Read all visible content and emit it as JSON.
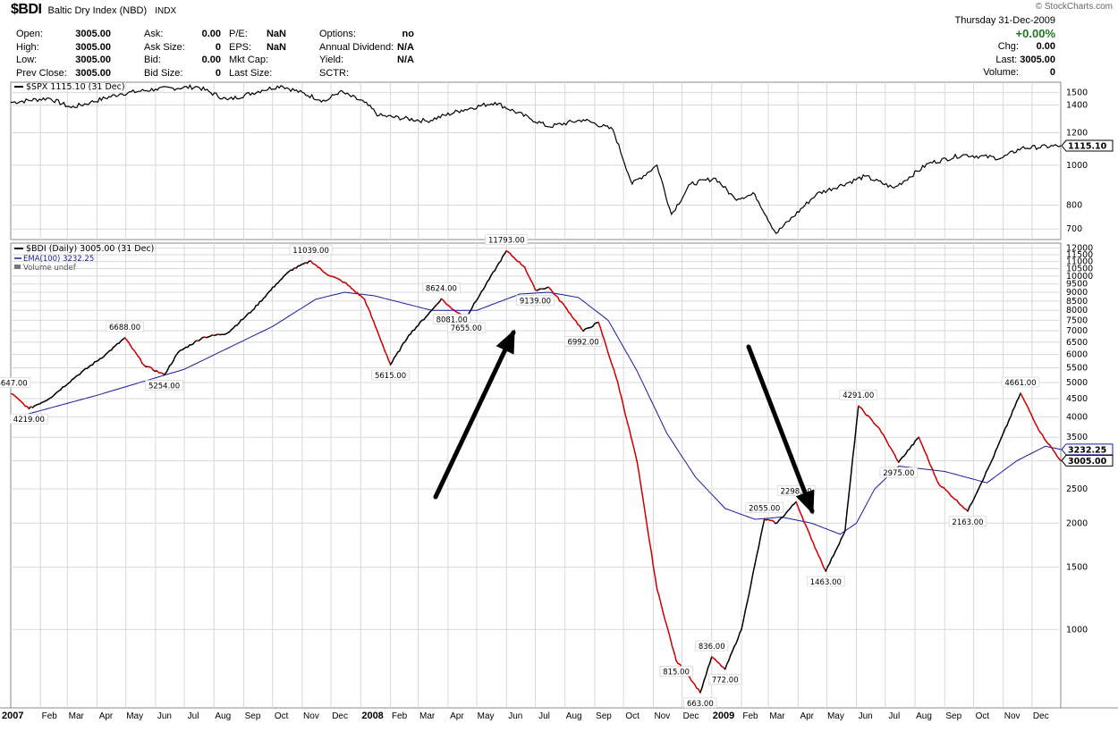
{
  "header": {
    "symbol": "$BDI",
    "name": "Baltic Dry Index (NBD)",
    "exchange": "INDX",
    "brand": "© StockCharts.com",
    "date": "Thursday  31-Dec-2009",
    "change_pct": "+0.00%",
    "col1": [
      [
        "Open:",
        "3005.00"
      ],
      [
        "High:",
        "3005.00"
      ],
      [
        "Low:",
        "3005.00"
      ],
      [
        "Prev Close:",
        "3005.00"
      ]
    ],
    "col2": [
      [
        "Ask:",
        "0.00"
      ],
      [
        "Ask Size:",
        "0"
      ],
      [
        "Bid:",
        "0.00"
      ],
      [
        "Bid Size:",
        "0"
      ]
    ],
    "col3": [
      [
        "P/E:",
        "NaN"
      ],
      [
        "EPS:",
        "NaN"
      ],
      [
        "Mkt Cap:",
        ""
      ],
      [
        "Last Size:",
        ""
      ]
    ],
    "col4": [
      [
        "Options:",
        "no"
      ],
      [
        "Annual Dividend:",
        "N/A"
      ],
      [
        "Yield:",
        "N/A"
      ],
      [
        "SCTR:",
        ""
      ]
    ],
    "right": [
      [
        "Chg:",
        "0.00"
      ],
      [
        "Last:",
        "3005.00"
      ],
      [
        "Volume:",
        "0"
      ]
    ]
  },
  "colors": {
    "up": "#000000",
    "down": "#cc0000",
    "ema": "#1a1aa0",
    "spx": "#000000",
    "grid": "#d8d8d8"
  },
  "chart_data": [
    {
      "type": "line",
      "legend": "$SPX 1115.10 (31 Dec)",
      "last_label": "1115.10",
      "y_ticks": [
        700,
        800,
        1000,
        1200,
        1400,
        1500
      ],
      "ylim": [
        660,
        1590
      ],
      "log_scale": true,
      "x_range": [
        "2007-01-01",
        "2009-12-31"
      ],
      "points": [
        [
          "2007-01-01",
          1420
        ],
        [
          "2007-02-10",
          1455
        ],
        [
          "2007-03-05",
          1380
        ],
        [
          "2007-03-25",
          1420
        ],
        [
          "2007-04-25",
          1490
        ],
        [
          "2007-06-01",
          1530
        ],
        [
          "2007-07-15",
          1550
        ],
        [
          "2007-08-15",
          1440
        ],
        [
          "2007-09-20",
          1520
        ],
        [
          "2007-10-10",
          1560
        ],
        [
          "2007-11-25",
          1430
        ],
        [
          "2007-12-10",
          1510
        ],
        [
          "2008-01-05",
          1420
        ],
        [
          "2008-01-20",
          1320
        ],
        [
          "2008-03-10",
          1280
        ],
        [
          "2008-04-15",
          1360
        ],
        [
          "2008-05-20",
          1420
        ],
        [
          "2008-06-25",
          1300
        ],
        [
          "2008-07-15",
          1240
        ],
        [
          "2008-08-20",
          1290
        ],
        [
          "2008-09-20",
          1220
        ],
        [
          "2008-10-10",
          900
        ],
        [
          "2008-11-05",
          1000
        ],
        [
          "2008-11-20",
          760
        ],
        [
          "2008-12-10",
          900
        ],
        [
          "2009-01-05",
          930
        ],
        [
          "2009-01-25",
          830
        ],
        [
          "2009-02-15",
          850
        ],
        [
          "2009-03-09",
          683
        ],
        [
          "2009-04-20",
          850
        ],
        [
          "2009-06-10",
          940
        ],
        [
          "2009-07-10",
          880
        ],
        [
          "2009-08-15",
          1010
        ],
        [
          "2009-09-20",
          1060
        ],
        [
          "2009-10-30",
          1040
        ],
        [
          "2009-11-20",
          1100
        ],
        [
          "2009-12-31",
          1115.1
        ]
      ]
    },
    {
      "type": "line",
      "legend": [
        "$BDI (Daily) 3005.00 (31 Dec)",
        "EMA(100) 3232.25",
        "Volume undef"
      ],
      "last_labels": [
        "3232.25",
        "3005.00"
      ],
      "y_ticks": [
        1000,
        1500,
        2000,
        2500,
        3000,
        3500,
        4000,
        4500,
        5000,
        5500,
        6000,
        6500,
        7000,
        7500,
        8000,
        8500,
        9000,
        9500,
        10000,
        10500,
        11000,
        11500,
        12000
      ],
      "ylim": [
        600,
        12400
      ],
      "log_scale": true,
      "x_labels": [
        "2007",
        "Feb",
        "Mar",
        "Apr",
        "May",
        "Jun",
        "Jul",
        "Aug",
        "Sep",
        "Oct",
        "Nov",
        "Dec",
        "2008",
        "Feb",
        "Mar",
        "Apr",
        "May",
        "Jun",
        "Jul",
        "Aug",
        "Sep",
        "Oct",
        "Nov",
        "Dec",
        "2009",
        "Feb",
        "Mar",
        "Apr",
        "May",
        "Jun",
        "Jul",
        "Aug",
        "Sep",
        "Oct",
        "Nov",
        "Dec"
      ],
      "series": [
        {
          "name": "$BDI (Daily)",
          "points": [
            [
              "2007-01-02",
              4647
            ],
            [
              "2007-01-20",
              4219
            ],
            [
              "2007-02-10",
              4500
            ],
            [
              "2007-03-10",
              5200
            ],
            [
              "2007-04-10",
              6000
            ],
            [
              "2007-04-30",
              6688
            ],
            [
              "2007-05-20",
              5600
            ],
            [
              "2007-06-10",
              5254
            ],
            [
              "2007-06-25",
              6100
            ],
            [
              "2007-07-20",
              6700
            ],
            [
              "2007-08-15",
              6900
            ],
            [
              "2007-09-10",
              8000
            ],
            [
              "2007-10-05",
              9500
            ],
            [
              "2007-10-20",
              10400
            ],
            [
              "2007-11-10",
              11039
            ],
            [
              "2007-11-25",
              10200
            ],
            [
              "2007-12-15",
              9600
            ],
            [
              "2008-01-05",
              8600
            ],
            [
              "2008-01-20",
              6800
            ],
            [
              "2008-02-01",
              5615
            ],
            [
              "2008-02-20",
              6800
            ],
            [
              "2008-03-15",
              8000
            ],
            [
              "2008-03-25",
              8624
            ],
            [
              "2008-04-05",
              8081
            ],
            [
              "2008-04-20",
              7655
            ],
            [
              "2008-05-10",
              9400
            ],
            [
              "2008-06-01",
              11793
            ],
            [
              "2008-06-20",
              10600
            ],
            [
              "2008-07-01",
              9139
            ],
            [
              "2008-07-15",
              9300
            ],
            [
              "2008-08-01",
              8200
            ],
            [
              "2008-08-20",
              6992
            ],
            [
              "2008-09-05",
              7400
            ],
            [
              "2008-09-25",
              5000
            ],
            [
              "2008-10-15",
              3000
            ],
            [
              "2008-11-05",
              1300
            ],
            [
              "2008-11-25",
              815
            ],
            [
              "2008-12-05",
              760
            ],
            [
              "2008-12-20",
              663
            ],
            [
              "2009-01-01",
              836
            ],
            [
              "2009-01-15",
              772
            ],
            [
              "2009-02-01",
              1000
            ],
            [
              "2009-02-25",
              2055
            ],
            [
              "2009-03-10",
              2000
            ],
            [
              "2009-03-30",
              2298
            ],
            [
              "2009-04-15",
              1800
            ],
            [
              "2009-04-30",
              1463
            ],
            [
              "2009-05-20",
              1900
            ],
            [
              "2009-06-03",
              4291
            ],
            [
              "2009-06-25",
              3700
            ],
            [
              "2009-07-15",
              2975
            ],
            [
              "2009-08-05",
              3500
            ],
            [
              "2009-08-25",
              2600
            ],
            [
              "2009-09-25",
              2163
            ],
            [
              "2009-10-20",
              3000
            ],
            [
              "2009-11-19",
              4661
            ],
            [
              "2009-12-10",
              3600
            ],
            [
              "2009-12-31",
              3005
            ]
          ]
        },
        {
          "name": "EMA(100)",
          "points": [
            [
              "2007-01-01",
              3950
            ],
            [
              "2007-04-01",
              4600
            ],
            [
              "2007-07-01",
              5450
            ],
            [
              "2007-10-01",
              7200
            ],
            [
              "2007-11-15",
              8600
            ],
            [
              "2007-12-15",
              9000
            ],
            [
              "2008-01-15",
              8800
            ],
            [
              "2008-03-15",
              8000
            ],
            [
              "2008-05-01",
              8000
            ],
            [
              "2008-06-15",
              8900
            ],
            [
              "2008-07-15",
              9000
            ],
            [
              "2008-08-15",
              8700
            ],
            [
              "2008-09-15",
              7500
            ],
            [
              "2008-10-15",
              5400
            ],
            [
              "2008-11-15",
              3600
            ],
            [
              "2008-12-15",
              2700
            ],
            [
              "2009-01-15",
              2200
            ],
            [
              "2009-02-15",
              2050
            ],
            [
              "2009-03-15",
              2080
            ],
            [
              "2009-04-15",
              2000
            ],
            [
              "2009-05-15",
              1860
            ],
            [
              "2009-06-01",
              2000
            ],
            [
              "2009-06-20",
              2500
            ],
            [
              "2009-07-15",
              2900
            ],
            [
              "2009-09-01",
              2800
            ],
            [
              "2009-10-15",
              2600
            ],
            [
              "2009-11-15",
              3000
            ],
            [
              "2009-12-15",
              3300
            ],
            [
              "2009-12-31",
              3232.25
            ]
          ]
        }
      ],
      "annotations": [
        {
          "text": "4647.00",
          "x": "2007-01-02",
          "y": 4647
        },
        {
          "text": "4219.00",
          "x": "2007-01-20",
          "y": 4219
        },
        {
          "text": "6688.00",
          "x": "2007-04-30",
          "y": 6688
        },
        {
          "text": "5254.00",
          "x": "2007-06-10",
          "y": 5254
        },
        {
          "text": "11039.00",
          "x": "2007-11-10",
          "y": 11039
        },
        {
          "text": "5615.00",
          "x": "2008-02-01",
          "y": 5615
        },
        {
          "text": "8624.00",
          "x": "2008-03-25",
          "y": 8624
        },
        {
          "text": "8081.00",
          "x": "2008-04-05",
          "y": 8081
        },
        {
          "text": "7655.00",
          "x": "2008-04-20",
          "y": 7655
        },
        {
          "text": "11793.00",
          "x": "2008-06-01",
          "y": 11793
        },
        {
          "text": "9139.00",
          "x": "2008-07-01",
          "y": 9139
        },
        {
          "text": "6992.00",
          "x": "2008-08-20",
          "y": 6992
        },
        {
          "text": "815.00",
          "x": "2008-11-25",
          "y": 815
        },
        {
          "text": "836.00",
          "x": "2009-01-01",
          "y": 836
        },
        {
          "text": "663.00",
          "x": "2008-12-20",
          "y": 663
        },
        {
          "text": "772.00",
          "x": "2009-01-15",
          "y": 772
        },
        {
          "text": "2055.00",
          "x": "2009-02-25",
          "y": 2055
        },
        {
          "text": "2298.00",
          "x": "2009-03-30",
          "y": 2298
        },
        {
          "text": "1463.00",
          "x": "2009-04-30",
          "y": 1463
        },
        {
          "text": "4291.00",
          "x": "2009-06-03",
          "y": 4291
        },
        {
          "text": "2975.00",
          "x": "2009-07-15",
          "y": 2975
        },
        {
          "text": "2163.00",
          "x": "2009-09-25",
          "y": 2163
        },
        {
          "text": "4661.00",
          "x": "2009-11-19",
          "y": 4661
        }
      ]
    }
  ]
}
